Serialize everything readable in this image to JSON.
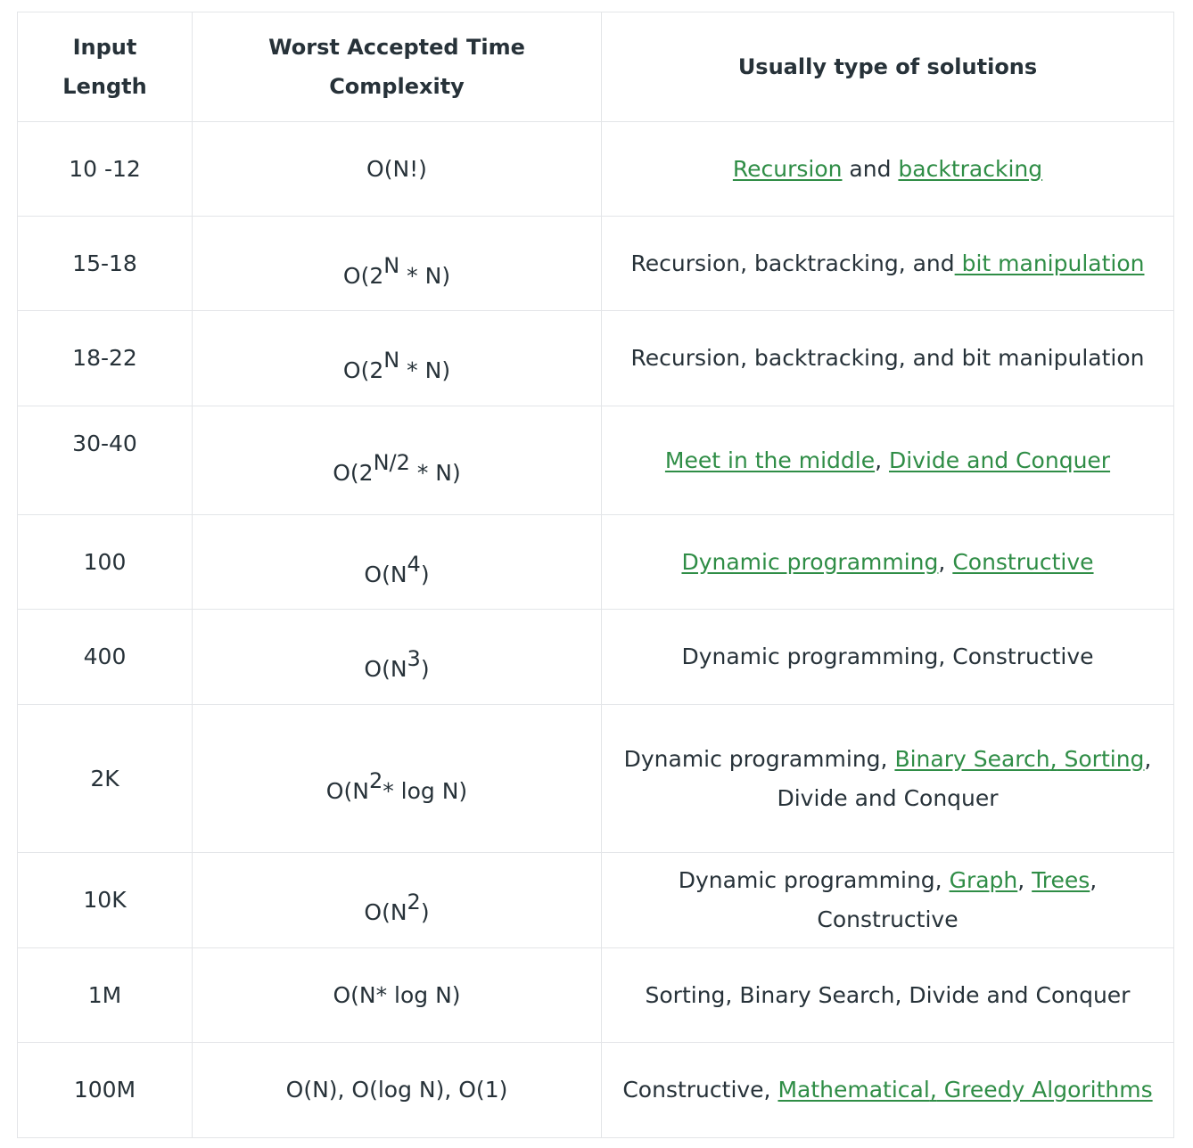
{
  "headers": [
    "Input Length",
    "Worst Accepted Time Complexity",
    "Usually type of solutions"
  ],
  "rows": [
    {
      "input": "10 -12",
      "complexity": {
        "pre": "O(N!)",
        "sup": "",
        "post": ""
      },
      "solutions": [
        {
          "text": "Recursion",
          "link": true
        },
        {
          "text": " and ",
          "link": false
        },
        {
          "text": "backtracking",
          "link": true
        }
      ]
    },
    {
      "input": "15-18",
      "complexity": {
        "pre": "O(2",
        "sup": "N",
        "post": " * N)"
      },
      "solutions": [
        {
          "text": "Recursion, backtracking, and",
          "link": false
        },
        {
          "text": " bit manipulation",
          "link": true
        }
      ]
    },
    {
      "input": "18-22",
      "complexity": {
        "pre": "O(2",
        "sup": "N",
        "post": " * N)"
      },
      "solutions": [
        {
          "text": "Recursion, backtracking, and bit manipulation",
          "link": false
        }
      ]
    },
    {
      "input": "30-40",
      "complexity": {
        "pre": "O(2",
        "sup": "N/2",
        "post": " * N)"
      },
      "solutions": [
        {
          "text": "Meet in the middle",
          "link": true
        },
        {
          "text": ", ",
          "link": false
        },
        {
          "text": "Divide and Conquer",
          "link": true
        }
      ]
    },
    {
      "input": "100",
      "complexity": {
        "pre": "O(N",
        "sup": "4",
        "post": ")"
      },
      "solutions": [
        {
          "text": "Dynamic programming",
          "link": true
        },
        {
          "text": ", ",
          "link": false
        },
        {
          "text": "Constructive",
          "link": true
        }
      ]
    },
    {
      "input": "400",
      "complexity": {
        "pre": "O(N",
        "sup": "3",
        "post": ")"
      },
      "solutions": [
        {
          "text": "Dynamic programming, Constructive",
          "link": false
        }
      ]
    },
    {
      "input": "2K",
      "complexity": {
        "pre": "O(N",
        "sup": "2",
        "post": "* log N)"
      },
      "solutions": [
        {
          "text": "Dynamic programming, ",
          "link": false
        },
        {
          "text": "Binary Search",
          "link": true
        },
        {
          "text": ",",
          "link": true
        },
        {
          "text": " Sorting",
          "link": true
        },
        {
          "text": ", Divide and Conquer",
          "link": false
        }
      ]
    },
    {
      "input": "10K",
      "complexity": {
        "pre": "O(N",
        "sup": "2",
        "post": ")"
      },
      "solutions": [
        {
          "text": "Dynamic programming, ",
          "link": false
        },
        {
          "text": "Graph",
          "link": true
        },
        {
          "text": ", ",
          "link": false
        },
        {
          "text": "Trees",
          "link": true
        },
        {
          "text": ", Constructive",
          "link": false
        }
      ]
    },
    {
      "input": "1M",
      "complexity": {
        "pre": "O(N* log N)",
        "sup": "",
        "post": ""
      },
      "solutions": [
        {
          "text": "Sorting, Binary Search, Divide and Conquer",
          "link": false
        }
      ]
    },
    {
      "input": "100M",
      "complexity": {
        "pre": "O(N), O(log N), O(1)",
        "sup": "",
        "post": ""
      },
      "solutions": [
        {
          "text": "Constructive, ",
          "link": false
        },
        {
          "text": "Mathematical",
          "link": true
        },
        {
          "text": ",",
          "link": true
        },
        {
          "text": " Greedy Algorithms",
          "link": true
        }
      ]
    }
  ],
  "colors": {
    "link": "#2f8d46",
    "text": "#273239",
    "border": "#e3e5e8"
  }
}
